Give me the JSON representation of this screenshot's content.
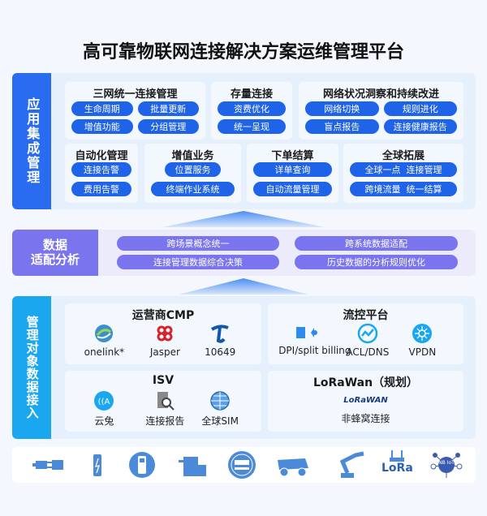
{
  "title": "高可靠物联网连接解决方案运维管理平台",
  "app_layer": {
    "label": "应用集成管理",
    "color": "#2a6cf0",
    "cards": [
      {
        "title": "三网统一连接管理",
        "items": [
          "生命周期",
          "批量更新",
          "增值功能",
          "分组管理"
        ]
      },
      {
        "title": "存量连接",
        "items": [
          "资费优化",
          "统一呈现"
        ]
      },
      {
        "title": "网络状况洞察和持续改进",
        "items": [
          "网络切换",
          "规则进化",
          "盲点报告",
          "连接健康报告"
        ]
      },
      {
        "title": "自动化管理",
        "items": [
          "连接告警",
          "费用告警"
        ]
      },
      {
        "title": "增值业务",
        "items": [
          "位置服务",
          "终端作业系统"
        ]
      },
      {
        "title": "下单结算",
        "items": [
          "详单查询",
          "自动流量管理"
        ]
      },
      {
        "title": "全球拓展",
        "items": [
          "全球一点  连接管理",
          "跨境流量  统一结算"
        ]
      }
    ]
  },
  "data_layer": {
    "label1": "数据",
    "label2": "适配分析",
    "color": "#7b74ef",
    "items": [
      "跨场景概念统一",
      "跨系统数据适配",
      "连接管理数据综合决策",
      "历史数据的分析规则优化"
    ]
  },
  "access_layer": {
    "label": "管理对象数据接入",
    "color": "#1aa7f0",
    "cards": [
      {
        "title": "运营商CMP",
        "items": [
          {
            "label": "onelink*",
            "icon": "china-mobile-logo"
          },
          {
            "label": "Jasper",
            "icon": "china-unicom-logo"
          },
          {
            "label": "10649",
            "icon": "china-telecom-logo"
          }
        ]
      },
      {
        "title": "流控平台",
        "items": [
          {
            "label": "DPI/split billing",
            "icon": "billing-icon"
          },
          {
            "label": "ACL/DNS",
            "icon": "chart-line-icon"
          },
          {
            "label": "VPDN",
            "icon": "network-hub-icon"
          }
        ]
      },
      {
        "title": "ISV",
        "items": [
          {
            "label": "云兔",
            "icon": "signal-icon"
          },
          {
            "label": "连接报告",
            "icon": "report-search-icon"
          },
          {
            "label": "全球SIM",
            "icon": "globe-icon"
          }
        ]
      },
      {
        "title": "LoRaWan（规划）",
        "items": [
          {
            "label": "非蜂窝连接",
            "icon": "lorawan-logo",
            "logo_text": "LoRaWAN"
          }
        ]
      }
    ]
  },
  "devices": [
    "plug-icon",
    "battery-icon",
    "meter-handheld-icon",
    "printer-icon",
    "smart-meter-icon",
    "mining-truck-icon",
    "robot-arm-icon",
    "lora-router-icon",
    "nb-iot-icon"
  ],
  "lora_text": "LoRa",
  "nbiot_text": "NB IoT"
}
